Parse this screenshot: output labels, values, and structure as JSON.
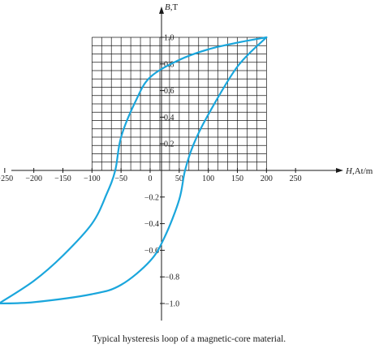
{
  "chart_data": {
    "type": "line",
    "title": "",
    "caption": "Typical hysteresis loop of a magnetic-core material.",
    "xlabel_var": "H",
    "xlabel_unit": ",At/m",
    "ylabel_var": "B",
    "ylabel_unit": ",T",
    "xlim": [
      -275,
      300
    ],
    "ylim": [
      -1.15,
      1.2
    ],
    "x_ticks": [
      {
        "v": -250,
        "label": "−250"
      },
      {
        "v": -200,
        "label": "−200"
      },
      {
        "v": -150,
        "label": "−150"
      },
      {
        "v": -100,
        "label": "−100"
      },
      {
        "v": -50,
        "label": "−50"
      },
      {
        "v": 0,
        "label": "0"
      },
      {
        "v": 50,
        "label": "50"
      },
      {
        "v": 100,
        "label": "100"
      },
      {
        "v": 150,
        "label": "150"
      },
      {
        "v": 200,
        "label": "200"
      },
      {
        "v": 250,
        "label": "250"
      }
    ],
    "y_ticks": [
      {
        "v": 1.0,
        "label": "1.0"
      },
      {
        "v": 0.8,
        "label": "0.8"
      },
      {
        "v": 0.6,
        "label": "0.6"
      },
      {
        "v": 0.4,
        "label": "0.4"
      },
      {
        "v": 0.2,
        "label": "0.2"
      },
      {
        "v": -0.2,
        "label": "−0.2"
      },
      {
        "v": -0.4,
        "label": "−0.4"
      },
      {
        "v": -0.6,
        "label": "−0.6"
      },
      {
        "v": -0.8,
        "label": "−0.8"
      },
      {
        "v": -1.0,
        "label": "−1.0"
      }
    ],
    "grid": {
      "on": true,
      "x_range": [
        -100,
        200
      ],
      "y_range": [
        0,
        1.0
      ],
      "x_step": 16.67,
      "y_step": 0.0625
    },
    "colors": {
      "curve": "#1aa6dc",
      "axis": "#1a1a1a",
      "grid": "#1a1a1a"
    },
    "series": [
      {
        "branch": "descending",
        "x": [
          200,
          150,
          100,
          50,
          0,
          -25,
          -50,
          -60,
          -75,
          -100,
          -150,
          -200,
          -260
        ],
        "y": [
          1.0,
          0.96,
          0.91,
          0.83,
          0.7,
          0.52,
          0.25,
          0.0,
          -0.18,
          -0.4,
          -0.64,
          -0.83,
          -1.0
        ]
      },
      {
        "branch": "ascending",
        "x": [
          -260,
          -200,
          -100,
          -50,
          0,
          25,
          50,
          60,
          75,
          100,
          150,
          200
        ],
        "y": [
          -1.0,
          -0.99,
          -0.93,
          -0.86,
          -0.68,
          -0.5,
          -0.22,
          0.0,
          0.2,
          0.42,
          0.78,
          1.0
        ]
      }
    ]
  }
}
